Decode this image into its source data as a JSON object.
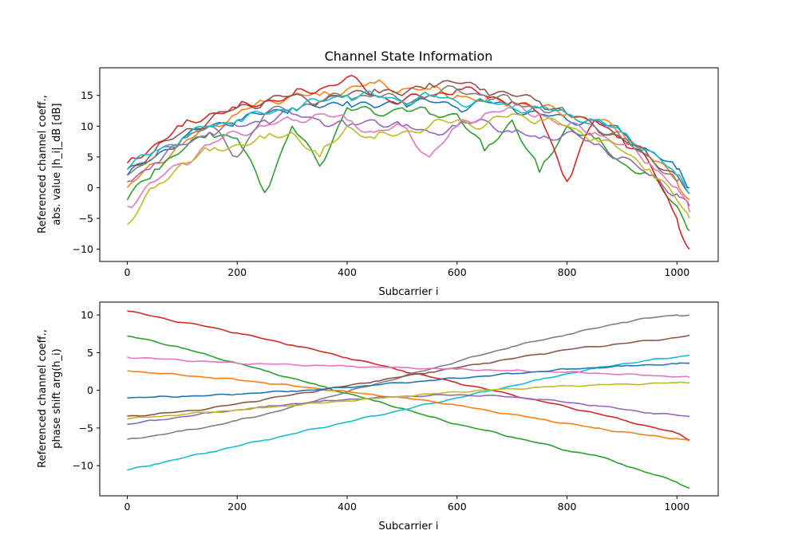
{
  "chart_data": [
    {
      "type": "line",
      "title": "Channel State Information",
      "xlabel": "Subcarrier i",
      "ylabel_line1": "Referenced channel coeff.,",
      "ylabel_line2": "abs. value |h_i|_dB [dB]",
      "xlim": [
        -50,
        1075
      ],
      "ylim": [
        -12,
        19.5
      ],
      "xticks": [
        "0",
        "200",
        "400",
        "600",
        "800",
        "1000"
      ],
      "yticks": [
        "−10",
        "−5",
        "0",
        "5",
        "10",
        "15"
      ],
      "grid": false,
      "x": [
        0,
        50,
        100,
        150,
        200,
        250,
        300,
        350,
        400,
        450,
        500,
        550,
        600,
        650,
        700,
        750,
        800,
        850,
        900,
        950,
        1000,
        1023
      ],
      "series": [
        {
          "color": "#1f77b4",
          "values": [
            2,
            5,
            8,
            10,
            11,
            12,
            13,
            13,
            14,
            13,
            14,
            14,
            13,
            14,
            13,
            12,
            11,
            11,
            9,
            6,
            3,
            0
          ]
        },
        {
          "color": "#ff7f0e",
          "values": [
            0,
            4,
            7,
            10,
            12,
            14,
            15,
            15,
            16,
            17,
            16,
            16,
            15,
            14,
            14,
            13,
            12,
            11,
            9,
            5,
            1,
            -2
          ]
        },
        {
          "color": "#2ca02c",
          "values": [
            -2,
            3,
            6,
            9,
            8,
            -0.8,
            10,
            3.5,
            13,
            12,
            13,
            12,
            12,
            6,
            11,
            2.5,
            10,
            8,
            4,
            2,
            -3,
            -7
          ]
        },
        {
          "color": "#d62728",
          "values": [
            4,
            7,
            10,
            12,
            13,
            14,
            15,
            16,
            18,
            15,
            14,
            15,
            16,
            15,
            14,
            12,
            1,
            11,
            8,
            4,
            -5,
            -10
          ]
        },
        {
          "color": "#9467bd",
          "values": [
            1,
            4,
            7,
            9,
            10,
            11,
            12,
            11,
            10,
            11,
            10,
            9,
            10,
            11,
            9,
            8,
            9,
            7,
            5,
            2,
            -1,
            -3
          ]
        },
        {
          "color": "#8c564b",
          "values": [
            3,
            6,
            9,
            11,
            13,
            14,
            15,
            14,
            15,
            16,
            15,
            17,
            17,
            16,
            15,
            14,
            12,
            10,
            8,
            5,
            2,
            -1
          ]
        },
        {
          "color": "#e377c2",
          "values": [
            -3,
            1,
            4,
            7,
            9,
            10,
            11,
            12,
            11,
            9,
            10,
            5,
            10,
            12,
            13,
            12,
            10,
            9,
            7,
            4,
            0,
            -4
          ]
        },
        {
          "color": "#7f7f7f",
          "values": [
            2,
            5,
            8,
            10,
            5,
            12,
            13,
            14,
            15,
            15,
            14,
            15,
            16,
            15,
            14,
            13,
            12,
            10,
            8,
            5,
            1,
            -1
          ]
        },
        {
          "color": "#bcbd22",
          "values": [
            -6,
            0,
            4,
            6,
            7,
            8,
            9,
            5,
            10,
            8,
            9,
            10,
            11,
            10,
            12,
            11,
            10,
            8,
            6,
            3,
            -2,
            -5
          ]
        },
        {
          "color": "#17becf",
          "values": [
            3,
            6,
            8,
            10,
            11,
            12,
            13,
            14,
            15,
            15,
            14,
            15,
            14,
            14,
            13,
            13,
            12,
            11,
            9,
            6,
            2,
            -1
          ]
        }
      ]
    },
    {
      "type": "line",
      "title": "",
      "xlabel": "Subcarrier i",
      "ylabel_line1": "Referenced channel coeff.,",
      "ylabel_line2": "phase shift arg(h_i)",
      "xlim": [
        -50,
        1075
      ],
      "ylim": [
        -14,
        11.7
      ],
      "xticks": [
        "0",
        "200",
        "400",
        "600",
        "800",
        "1000"
      ],
      "yticks": [
        "−10",
        "−5",
        "0",
        "5",
        "10"
      ],
      "grid": false,
      "x": [
        0,
        50,
        100,
        150,
        200,
        250,
        300,
        350,
        400,
        450,
        500,
        550,
        600,
        650,
        700,
        750,
        800,
        850,
        900,
        950,
        1000,
        1023
      ],
      "series": [
        {
          "color": "#d62728",
          "values": [
            10.5,
            9.8,
            9.0,
            8.4,
            7.6,
            6.8,
            6.0,
            5.2,
            4.3,
            3.5,
            2.6,
            1.8,
            1.0,
            0.2,
            -0.6,
            -1.4,
            -2.2,
            -3.0,
            -3.9,
            -4.8,
            -5.7,
            -6.6
          ]
        },
        {
          "color": "#2ca02c",
          "values": [
            7.2,
            6.5,
            5.6,
            4.6,
            3.6,
            2.6,
            1.6,
            0.6,
            -0.4,
            -1.4,
            -2.4,
            -3.5,
            -4.5,
            -5.3,
            -6.2,
            -7.0,
            -8.0,
            -8.6,
            -9.8,
            -11.0,
            -12.2,
            -13.0
          ]
        },
        {
          "color": "#17becf",
          "values": [
            -10.6,
            -9.8,
            -9.0,
            -8.2,
            -7.4,
            -6.6,
            -5.8,
            -5.0,
            -4.2,
            -3.4,
            -2.6,
            -1.8,
            -1.0,
            -0.2,
            0.6,
            1.4,
            2.2,
            2.9,
            3.5,
            4.0,
            4.4,
            4.7
          ]
        },
        {
          "color": "#7f7f7f",
          "values": [
            -6.5,
            -6.0,
            -5.4,
            -4.8,
            -4.0,
            -3.2,
            -2.2,
            -1.2,
            -0.2,
            0.8,
            1.8,
            2.8,
            3.8,
            4.8,
            5.8,
            6.6,
            7.4,
            8.2,
            9.0,
            9.6,
            10.0,
            10.0
          ]
        },
        {
          "color": "#ff7f0e",
          "values": [
            2.6,
            2.3,
            2.0,
            1.7,
            1.4,
            1.0,
            0.6,
            0.2,
            -0.2,
            -0.6,
            -1.0,
            -1.4,
            -2.0,
            -2.6,
            -3.2,
            -3.8,
            -4.4,
            -5.0,
            -5.5,
            -6.0,
            -6.4,
            -6.7
          ]
        },
        {
          "color": "#8c564b",
          "values": [
            -3.4,
            -3.2,
            -2.8,
            -2.4,
            -1.8,
            -1.2,
            -0.6,
            0.0,
            0.6,
            1.2,
            1.8,
            2.4,
            3.0,
            3.6,
            4.2,
            4.8,
            5.4,
            5.8,
            6.2,
            6.6,
            7.0,
            7.3
          ]
        },
        {
          "color": "#e377c2",
          "values": [
            4.4,
            4.2,
            4.0,
            3.8,
            3.6,
            3.5,
            3.4,
            3.3,
            3.2,
            3.1,
            3.0,
            2.9,
            2.8,
            2.7,
            2.6,
            2.5,
            2.4,
            2.3,
            2.1,
            2.0,
            1.8,
            1.7
          ]
        },
        {
          "color": "#1f77b4",
          "values": [
            -1.0,
            -0.9,
            -0.8,
            -0.7,
            -0.5,
            -0.3,
            -0.1,
            0.1,
            0.4,
            0.7,
            1.0,
            1.3,
            1.6,
            1.9,
            2.2,
            2.5,
            2.8,
            3.0,
            3.2,
            3.4,
            3.5,
            3.6
          ]
        },
        {
          "color": "#9467bd",
          "values": [
            -4.5,
            -4.0,
            -3.5,
            -3.0,
            -2.6,
            -2.2,
            -1.8,
            -1.5,
            -1.2,
            -1.0,
            -0.8,
            -0.7,
            -0.6,
            -0.7,
            -0.9,
            -1.2,
            -1.6,
            -2.0,
            -2.5,
            -3.0,
            -3.3,
            -3.5
          ]
        },
        {
          "color": "#bcbd22",
          "values": [
            -3.8,
            -3.5,
            -3.2,
            -2.9,
            -2.6,
            -2.3,
            -2.0,
            -1.7,
            -1.4,
            -1.1,
            -0.8,
            -0.5,
            -0.2,
            0.0,
            0.2,
            0.4,
            0.6,
            0.7,
            0.8,
            0.9,
            1.0,
            1.0
          ]
        }
      ]
    }
  ]
}
